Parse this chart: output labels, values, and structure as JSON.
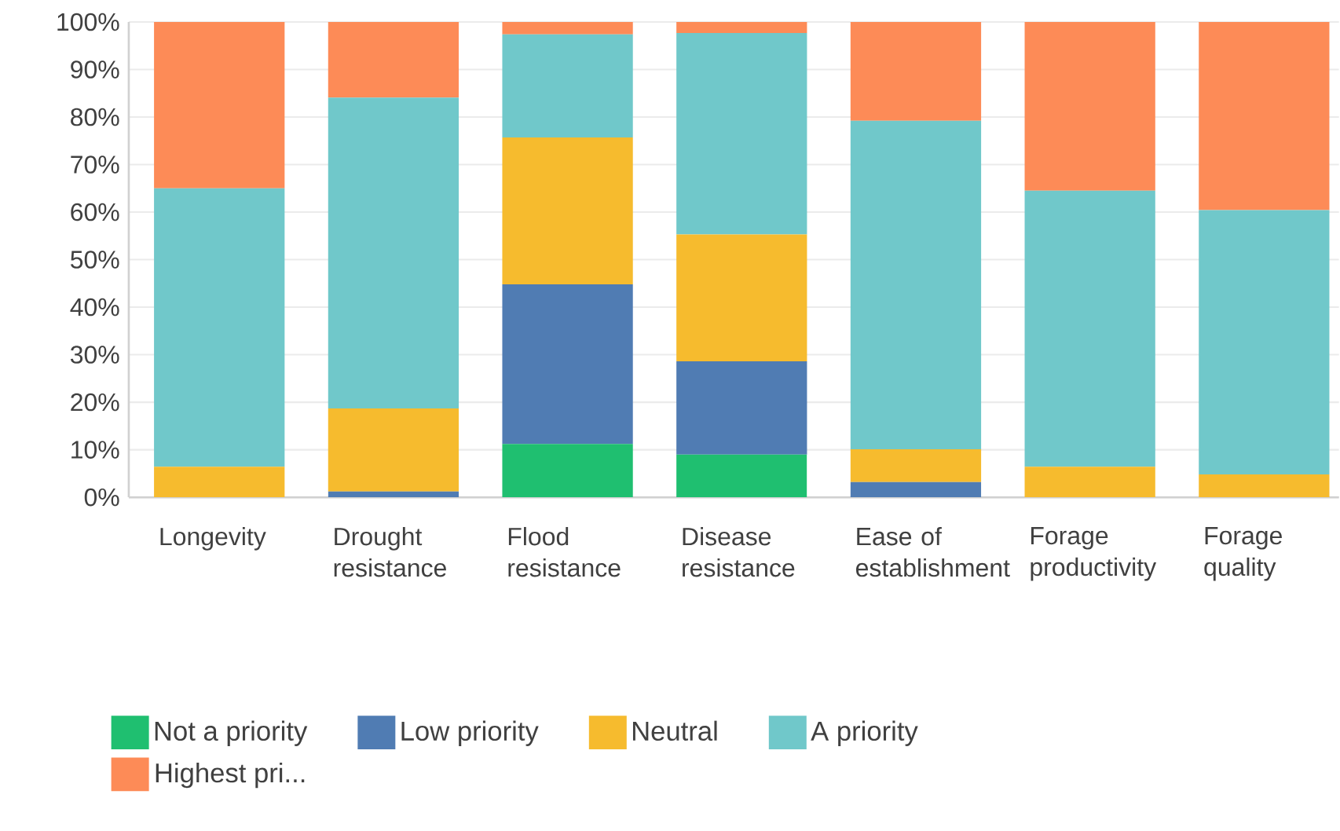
{
  "chart_data": {
    "type": "bar",
    "stacked": true,
    "grid": "y",
    "legend": "bottom",
    "categories": [
      "Longevity",
      "Drought resistance",
      "Flood resistance",
      "Disease resistance",
      "Ease of establishment",
      "Forage productivity",
      "Forage quality"
    ],
    "ylim": [
      0,
      100
    ],
    "yticks": [
      {
        "value": 0,
        "label": "0%"
      },
      {
        "value": 10,
        "label": "10%"
      },
      {
        "value": 20,
        "label": "20%"
      },
      {
        "value": 30,
        "label": "30%"
      },
      {
        "value": 40,
        "label": "40%"
      },
      {
        "value": 50,
        "label": "50%"
      },
      {
        "value": 60,
        "label": "60%"
      },
      {
        "value": 70,
        "label": "70%"
      },
      {
        "value": 80,
        "label": "80%"
      },
      {
        "value": 90,
        "label": "90%"
      },
      {
        "value": 100,
        "label": "100%"
      }
    ],
    "series": [
      {
        "name": "Not a priority",
        "color": "#1fbf70",
        "values": [
          0,
          0,
          11.2,
          9.0,
          0,
          0,
          0
        ]
      },
      {
        "name": "Low priority",
        "color": "#507cb3",
        "values": [
          0,
          1.2,
          33.6,
          19.6,
          3.2,
          0,
          0
        ]
      },
      {
        "name": "Neutral",
        "color": "#f6bb2e",
        "values": [
          6.4,
          17.5,
          30.9,
          26.7,
          6.9,
          6.4,
          4.8
        ]
      },
      {
        "name": "A priority",
        "color": "#70c8ca",
        "values": [
          58.6,
          65.4,
          21.7,
          42.4,
          69.1,
          58.1,
          55.6
        ]
      },
      {
        "name": "Highest pri...",
        "color": "#fd8b57",
        "values": [
          35.0,
          15.9,
          2.6,
          2.3,
          20.8,
          35.5,
          39.6
        ]
      }
    ]
  }
}
